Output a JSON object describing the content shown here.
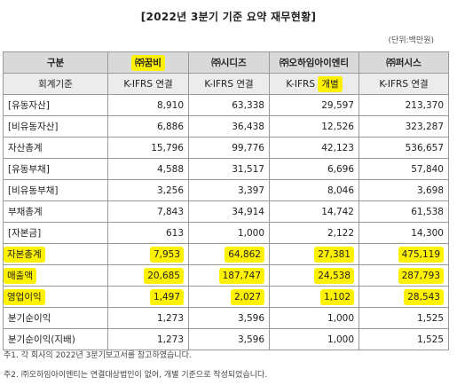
{
  "title": "[2022년 3분기 기준 요약 재무현황]",
  "unit": "(단위:백만원)",
  "header": {
    "label": "구분",
    "companies": [
      "㈜꿈비",
      "㈜시디즈",
      "㈜오하임아이엔티",
      "㈜퍼시스"
    ]
  },
  "standard_row": {
    "label": "회계기준",
    "values": [
      "K-IFRS 연결",
      "K-IFRS 연결",
      "K-IFRS 개별",
      "K-IFRS 연결"
    ]
  },
  "rows": [
    {
      "label": "[유동자산]",
      "values": [
        "8,910",
        "63,338",
        "29,597",
        "213,370"
      ]
    },
    {
      "label": "[비유동자산]",
      "values": [
        "6,886",
        "36,438",
        "12,526",
        "323,287"
      ]
    },
    {
      "label": "자산총계",
      "values": [
        "15,796",
        "99,776",
        "42,123",
        "536,657"
      ]
    },
    {
      "label": "[유동부채]",
      "values": [
        "4,588",
        "31,517",
        "6,696",
        "57,840"
      ]
    },
    {
      "label": "[비유동부채]",
      "values": [
        "3,256",
        "3,397",
        "8,046",
        "3,698"
      ]
    },
    {
      "label": "부채총계",
      "values": [
        "7,843",
        "34,914",
        "14,742",
        "61,538"
      ]
    },
    {
      "label": "[자본금]",
      "values": [
        "613",
        "1,000",
        "2,122",
        "14,300"
      ]
    },
    {
      "label": "자본총계",
      "values": [
        "7,953",
        "64,862",
        "27,381",
        "475,119"
      ]
    },
    {
      "label": "매출액",
      "values": [
        "20,685",
        "187,747",
        "24,538",
        "287,793"
      ]
    },
    {
      "label": "영업이익",
      "values": [
        "1,497",
        "2,027",
        "1,102",
        "28,543"
      ]
    },
    {
      "label": "분기순이익",
      "values": [
        "1,273",
        "3,596",
        "1,000",
        "1,525"
      ]
    },
    {
      "label": "분기순이익(지배)",
      "values": [
        "1,273",
        "3,596",
        "1,000",
        "1,525"
      ]
    }
  ],
  "highlight_color": "#fff200",
  "notes": [
    "주1. 각 회사의 2022년 3분기보고서를 참고하였습니다.",
    "주2. ㈜오하임아이엔티는 연결대상법인이 없어, 개별 기준으로 작성되었습니다."
  ]
}
